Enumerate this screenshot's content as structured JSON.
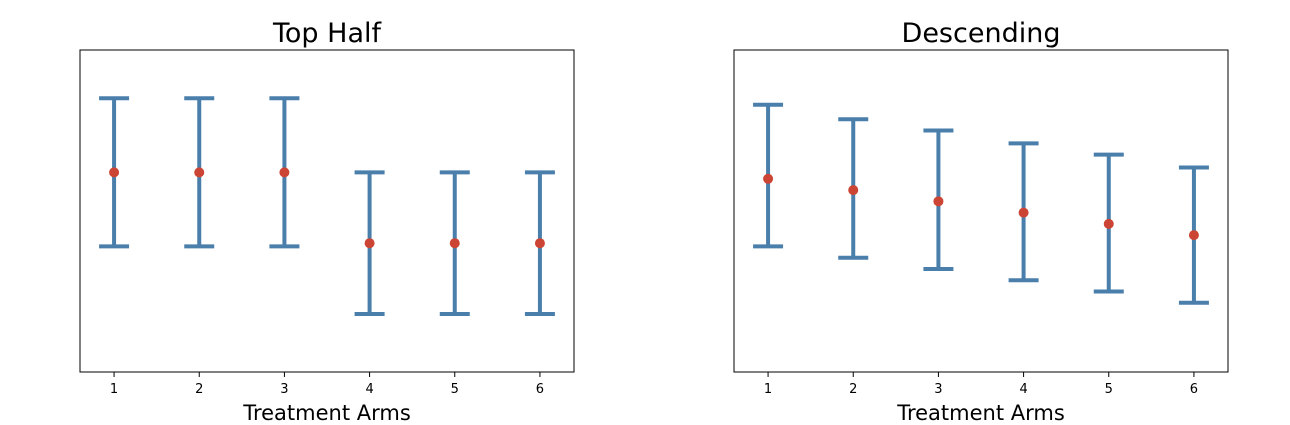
{
  "chart_data": [
    {
      "type": "errorbar",
      "title": "Top Half",
      "xlabel": "Treatment Arms",
      "ylabel": "",
      "x": [
        1,
        2,
        3,
        4,
        5,
        6
      ],
      "tick_labels": [
        "1",
        "2",
        "3",
        "4",
        "5",
        "6"
      ],
      "values": [
        0.62,
        0.62,
        0.62,
        0.4,
        0.4,
        0.4
      ],
      "lower": [
        0.39,
        0.39,
        0.39,
        0.18,
        0.18,
        0.18
      ],
      "upper": [
        0.85,
        0.85,
        0.85,
        0.62,
        0.62,
        0.62
      ],
      "xlim": [
        0.6,
        6.4
      ],
      "ylim": [
        0,
        1
      ],
      "show_y_ticks": false,
      "grid": false,
      "colors": {
        "errorbar": "#4a7fab",
        "point": "#cc4433"
      }
    },
    {
      "type": "errorbar",
      "title": "Descending",
      "xlabel": "Treatment Arms",
      "ylabel": "",
      "x": [
        1,
        2,
        3,
        4,
        5,
        6
      ],
      "tick_labels": [
        "1",
        "2",
        "3",
        "4",
        "5",
        "6"
      ],
      "values": [
        0.6,
        0.565,
        0.53,
        0.495,
        0.46,
        0.425
      ],
      "lower": [
        0.39,
        0.355,
        0.32,
        0.285,
        0.25,
        0.215
      ],
      "upper": [
        0.83,
        0.785,
        0.75,
        0.71,
        0.675,
        0.635
      ],
      "xlim": [
        0.6,
        6.4
      ],
      "ylim": [
        0,
        1
      ],
      "show_y_ticks": false,
      "grid": false,
      "colors": {
        "errorbar": "#4a7fab",
        "point": "#cc4433"
      }
    }
  ]
}
